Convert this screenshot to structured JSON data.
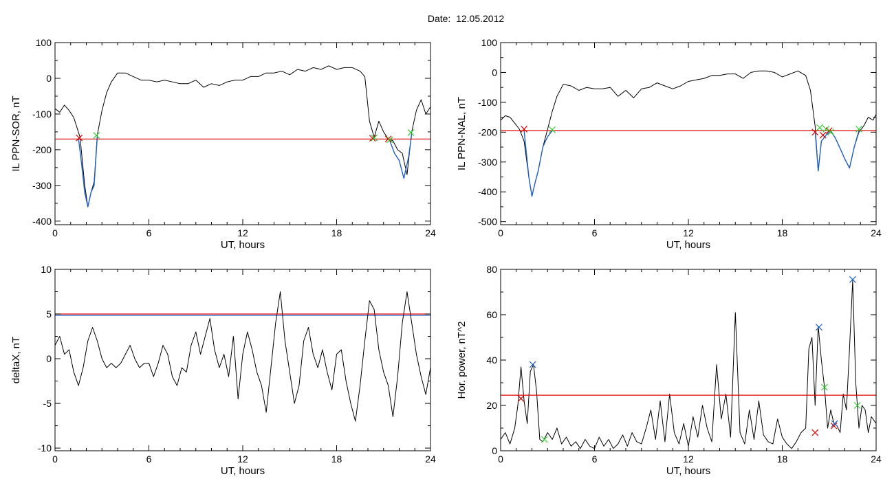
{
  "figure": {
    "title": "Date:  12.05.2012"
  },
  "colors": {
    "trace": "#000000",
    "threshold": "#dd0000",
    "highlight": "#1f5fc8",
    "start_marker": "#dd0000",
    "end_marker": "#33cc33",
    "peak_marker": "#1f5fc8"
  },
  "chart_data": [
    {
      "type": "line",
      "xlabel": "UT, hours",
      "ylabel": "IL PPN-SOR, nT",
      "xlim": [
        0,
        24
      ],
      "ylim": [
        -410,
        100
      ],
      "xticks": [
        0,
        6,
        12,
        18,
        24
      ],
      "yticks": [
        -400,
        -300,
        -200,
        -100,
        0,
        100
      ],
      "threshold": -170,
      "series": [
        {
          "style": "trace",
          "x": [
            0,
            0.3,
            0.6,
            0.9,
            1.2,
            1.6,
            1.9,
            2.1,
            2.3,
            2.5,
            2.7,
            3.0,
            3.3,
            3.6,
            4.0,
            4.5,
            5.0,
            5.5,
            6.0,
            6.5,
            7.0,
            7.5,
            8.0,
            8.5,
            9.0,
            9.5,
            10.0,
            10.5,
            11.0,
            11.5,
            12.0,
            12.5,
            13.0,
            13.5,
            14.0,
            14.5,
            15.0,
            15.5,
            16.0,
            16.5,
            17.0,
            17.5,
            18.0,
            18.5,
            19.0,
            19.5,
            19.8,
            20.1,
            20.4,
            20.7,
            21.0,
            21.3,
            21.6,
            21.9,
            22.2,
            22.5,
            22.8,
            23.1,
            23.4,
            23.7,
            24.0
          ],
          "y": [
            -85,
            -95,
            -75,
            -90,
            -110,
            -165,
            -300,
            -360,
            -320,
            -290,
            -160,
            -90,
            -40,
            -10,
            15,
            15,
            5,
            -5,
            -5,
            -10,
            -5,
            -10,
            -15,
            -15,
            -5,
            -25,
            -15,
            -20,
            -10,
            -5,
            -5,
            5,
            5,
            15,
            15,
            20,
            10,
            25,
            20,
            30,
            25,
            35,
            25,
            30,
            30,
            20,
            5,
            -120,
            -165,
            -120,
            -150,
            -170,
            -175,
            -200,
            -210,
            -270,
            -150,
            -90,
            -60,
            -100,
            -80
          ]
        },
        {
          "style": "highlight",
          "x": [
            1.5,
            1.7,
            1.9,
            2.1,
            2.3,
            2.5,
            2.7
          ],
          "y": [
            -168,
            -240,
            -320,
            -360,
            -320,
            -300,
            -165
          ]
        },
        {
          "style": "highlight",
          "x": [
            21.4,
            21.7,
            22.0,
            22.3,
            22.6,
            22.8
          ],
          "y": [
            -175,
            -210,
            -230,
            -280,
            -220,
            -155
          ]
        }
      ],
      "markers": [
        {
          "x": 1.55,
          "y": -167,
          "kind": "start"
        },
        {
          "x": 2.65,
          "y": -160,
          "kind": "end"
        },
        {
          "x": 20.3,
          "y": -168,
          "kind": "start"
        },
        {
          "x": 20.4,
          "y": -167,
          "kind": "end"
        },
        {
          "x": 21.3,
          "y": -170,
          "kind": "start"
        },
        {
          "x": 21.4,
          "y": -172,
          "kind": "end"
        },
        {
          "x": 22.75,
          "y": -152,
          "kind": "end"
        }
      ]
    },
    {
      "type": "line",
      "xlabel": "UT, hours",
      "ylabel": "IL PPN-NAL, nT",
      "xlim": [
        0,
        24
      ],
      "ylim": [
        -510,
        100
      ],
      "xticks": [
        0,
        6,
        12,
        18,
        24
      ],
      "yticks": [
        -500,
        -400,
        -300,
        -200,
        -100,
        0,
        100
      ],
      "threshold": -195,
      "series": [
        {
          "style": "trace",
          "x": [
            0,
            0.3,
            0.6,
            0.9,
            1.2,
            1.5,
            1.8,
            2.0,
            2.2,
            2.4,
            2.7,
            3.0,
            3.3,
            3.6,
            4.0,
            4.5,
            5.0,
            5.5,
            6.0,
            6.5,
            7.0,
            7.5,
            8.0,
            8.5,
            9.0,
            9.5,
            10.0,
            10.5,
            11.0,
            11.5,
            12.0,
            12.5,
            13.0,
            13.5,
            14.0,
            14.5,
            15.0,
            15.5,
            16.0,
            16.5,
            17.0,
            17.5,
            18.0,
            18.5,
            19.0,
            19.5,
            19.8,
            20.1,
            20.3,
            20.5,
            20.8,
            21.1,
            21.4,
            21.7,
            22.0,
            22.3,
            22.6,
            22.9,
            23.2,
            23.5,
            23.8,
            24.0
          ],
          "y": [
            -160,
            -145,
            -150,
            -170,
            -190,
            -230,
            -350,
            -415,
            -370,
            -330,
            -250,
            -190,
            -130,
            -80,
            -40,
            -45,
            -60,
            -50,
            -55,
            -55,
            -50,
            -80,
            -60,
            -85,
            -55,
            -50,
            -35,
            -45,
            -55,
            -45,
            -30,
            -25,
            -20,
            -10,
            -10,
            -5,
            -5,
            -20,
            0,
            5,
            5,
            0,
            -15,
            -5,
            5,
            -10,
            -60,
            -180,
            -330,
            -230,
            -210,
            -195,
            -220,
            -255,
            -290,
            -320,
            -250,
            -200,
            -180,
            -150,
            -160,
            -140
          ]
        },
        {
          "style": "highlight",
          "x": [
            1.5,
            1.8,
            2.0,
            2.2,
            2.4,
            2.7,
            3.0,
            3.3
          ],
          "y": [
            -195,
            -350,
            -415,
            -370,
            -330,
            -250,
            -215,
            -195
          ]
        },
        {
          "style": "highlight",
          "x": [
            20.1,
            20.3,
            20.5,
            20.8,
            21.1,
            21.4,
            21.7,
            22.0,
            22.3,
            22.6,
            22.9
          ],
          "y": [
            -195,
            -330,
            -230,
            -210,
            -195,
            -220,
            -255,
            -290,
            -320,
            -250,
            -195
          ]
        }
      ],
      "markers": [
        {
          "x": 1.5,
          "y": -190,
          "kind": "start"
        },
        {
          "x": 3.3,
          "y": -192,
          "kind": "end"
        },
        {
          "x": 20.1,
          "y": -200,
          "kind": "start"
        },
        {
          "x": 20.4,
          "y": -185,
          "kind": "end"
        },
        {
          "x": 20.6,
          "y": -210,
          "kind": "start"
        },
        {
          "x": 20.8,
          "y": -190,
          "kind": "end"
        },
        {
          "x": 21.0,
          "y": -195,
          "kind": "start"
        },
        {
          "x": 21.1,
          "y": -200,
          "kind": "end"
        },
        {
          "x": 22.9,
          "y": -190,
          "kind": "end"
        }
      ]
    },
    {
      "type": "line",
      "xlabel": "UT, hours",
      "ylabel": "deltaX, nT",
      "xlim": [
        0,
        24
      ],
      "ylim": [
        -10.3,
        10
      ],
      "xticks": [
        0,
        6,
        12,
        18,
        24
      ],
      "yticks": [
        -10,
        -5,
        0,
        5,
        10
      ],
      "threshold": 5,
      "threshold2": 4.85,
      "series": [
        {
          "style": "trace",
          "x": [
            0,
            0.3,
            0.6,
            0.9,
            1.2,
            1.5,
            1.8,
            2.1,
            2.4,
            2.7,
            3.0,
            3.3,
            3.6,
            3.9,
            4.2,
            4.5,
            4.8,
            5.1,
            5.4,
            5.7,
            6.0,
            6.3,
            6.6,
            6.9,
            7.2,
            7.5,
            7.8,
            8.1,
            8.4,
            8.7,
            9.0,
            9.3,
            9.6,
            9.9,
            10.2,
            10.5,
            10.8,
            11.1,
            11.4,
            11.7,
            12.0,
            12.3,
            12.6,
            12.9,
            13.2,
            13.5,
            13.8,
            14.1,
            14.4,
            14.7,
            15.0,
            15.3,
            15.6,
            15.9,
            16.2,
            16.5,
            16.8,
            17.1,
            17.4,
            17.7,
            18.0,
            18.3,
            18.6,
            18.9,
            19.2,
            19.5,
            19.8,
            20.1,
            20.4,
            20.7,
            21.0,
            21.3,
            21.6,
            21.9,
            22.2,
            22.5,
            22.8,
            23.1,
            23.4,
            23.7,
            24.0
          ],
          "y": [
            1.5,
            2.5,
            0.5,
            1.0,
            -1.5,
            -3.0,
            -1.0,
            2.0,
            3.5,
            2.0,
            0.0,
            -1.0,
            -0.5,
            -1.0,
            -0.5,
            0.5,
            1.5,
            0.0,
            -1.0,
            -0.5,
            -0.5,
            -2.0,
            -0.5,
            1.5,
            0.5,
            -2.0,
            -3.0,
            -1.0,
            -1.5,
            1.5,
            3.0,
            0.5,
            2.5,
            4.5,
            1.0,
            -1.0,
            0.5,
            -2.0,
            2.5,
            -4.5,
            0.5,
            3.0,
            1.0,
            -1.5,
            -3.0,
            -6.0,
            -1.0,
            4.0,
            7.5,
            2.0,
            -1.5,
            -5.0,
            -3.0,
            2.0,
            3.5,
            0.5,
            -1.0,
            1.0,
            -1.5,
            -3.5,
            0.5,
            1.0,
            -2.5,
            -5.0,
            -7.0,
            -3.0,
            2.0,
            6.5,
            5.5,
            1.0,
            -1.5,
            -3.0,
            -6.5,
            -2.0,
            4.0,
            7.5,
            4.0,
            0.5,
            -2.0,
            -4.0,
            -1.0
          ]
        }
      ],
      "markers": []
    },
    {
      "type": "line",
      "xlabel": "UT, hours",
      "ylabel": "Hor. power, nT^2",
      "xlim": [
        0,
        24
      ],
      "ylim": [
        0,
        80
      ],
      "xticks": [
        0,
        6,
        12,
        18,
        24
      ],
      "yticks": [
        0,
        20,
        40,
        60,
        80
      ],
      "threshold": 24.5,
      "series": [
        {
          "style": "trace",
          "x": [
            0,
            0.3,
            0.6,
            0.9,
            1.1,
            1.3,
            1.5,
            1.7,
            1.9,
            2.1,
            2.3,
            2.5,
            2.7,
            3.0,
            3.3,
            3.6,
            3.9,
            4.2,
            4.5,
            4.8,
            5.1,
            5.4,
            5.7,
            6.0,
            6.3,
            6.6,
            6.9,
            7.2,
            7.5,
            7.8,
            8.1,
            8.4,
            8.7,
            9.0,
            9.3,
            9.6,
            9.9,
            10.2,
            10.5,
            10.8,
            11.1,
            11.4,
            11.7,
            12.0,
            12.3,
            12.6,
            12.9,
            13.2,
            13.5,
            13.8,
            14.1,
            14.4,
            14.7,
            15.0,
            15.3,
            15.6,
            15.9,
            16.2,
            16.5,
            16.8,
            17.1,
            17.4,
            17.7,
            18.0,
            18.3,
            18.6,
            18.9,
            19.2,
            19.5,
            19.7,
            19.9,
            20.1,
            20.3,
            20.5,
            20.7,
            20.9,
            21.1,
            21.3,
            21.5,
            21.7,
            21.9,
            22.1,
            22.3,
            22.5,
            22.7,
            22.9,
            23.1,
            23.3,
            23.5,
            23.7,
            24.0
          ],
          "y": [
            5,
            8,
            3,
            10,
            20,
            37,
            22,
            12,
            35,
            38,
            26,
            5,
            4,
            8,
            5,
            10,
            3,
            6,
            2,
            4,
            1,
            5,
            2,
            1,
            6,
            2,
            5,
            1,
            3,
            7,
            2,
            8,
            4,
            3,
            10,
            18,
            5,
            22,
            4,
            25,
            8,
            3,
            12,
            2,
            15,
            6,
            20,
            10,
            4,
            38,
            14,
            25,
            6,
            61,
            8,
            3,
            18,
            5,
            22,
            7,
            4,
            3,
            14,
            6,
            3,
            1,
            4,
            8,
            10,
            45,
            50,
            20,
            55,
            40,
            28,
            10,
            18,
            12,
            11,
            8,
            25,
            18,
            45,
            75,
            30,
            10,
            20,
            18,
            8,
            15,
            12
          ]
        }
      ],
      "markers": [
        {
          "x": 1.3,
          "y": 23,
          "kind": "start"
        },
        {
          "x": 2.05,
          "y": 38,
          "kind": "peak"
        },
        {
          "x": 2.8,
          "y": 5,
          "kind": "end"
        },
        {
          "x": 20.1,
          "y": 8,
          "kind": "start"
        },
        {
          "x": 20.35,
          "y": 54.5,
          "kind": "peak"
        },
        {
          "x": 20.7,
          "y": 28,
          "kind": "end"
        },
        {
          "x": 21.3,
          "y": 11,
          "kind": "start"
        },
        {
          "x": 21.35,
          "y": 12,
          "kind": "peak"
        },
        {
          "x": 22.5,
          "y": 75.5,
          "kind": "peak"
        },
        {
          "x": 22.8,
          "y": 20,
          "kind": "end"
        }
      ]
    }
  ]
}
